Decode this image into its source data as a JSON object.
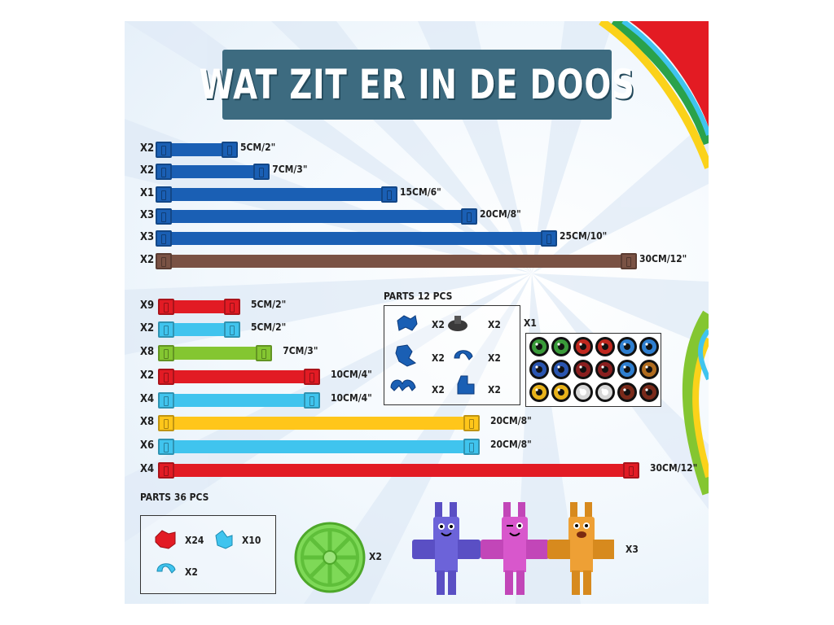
{
  "title": "WAT ZIT ER IN DE DOOS",
  "colors": {
    "dark_blue": "#1a5fb4",
    "brown": "#7a5244",
    "red": "#e21b24",
    "light_blue": "#40c4ee",
    "green": "#84c631",
    "yellow": "#ffc61a",
    "title_bg": "#3d6b80"
  },
  "rods_top": [
    {
      "qty": "X2",
      "length": "5CM/2\"",
      "color": "dark_blue"
    },
    {
      "qty": "X2",
      "length": "7CM/3\"",
      "color": "dark_blue"
    },
    {
      "qty": "X1",
      "length": "15CM/6\"",
      "color": "dark_blue"
    },
    {
      "qty": "X3",
      "length": "20CM/8\"",
      "color": "dark_blue"
    },
    {
      "qty": "X3",
      "length": "25CM/10\"",
      "color": "dark_blue"
    },
    {
      "qty": "X2",
      "length": "30CM/12\"",
      "color": "brown"
    }
  ],
  "rods_bottom": [
    {
      "qty": "X9",
      "length": "5CM/2\"",
      "color": "red"
    },
    {
      "qty": "X2",
      "length": "5CM/2\"",
      "color": "light_blue"
    },
    {
      "qty": "X8",
      "length": "7CM/3\"",
      "color": "green"
    },
    {
      "qty": "X2",
      "length": "10CM/4\"",
      "color": "red"
    },
    {
      "qty": "X4",
      "length": "10CM/4\"",
      "color": "light_blue"
    },
    {
      "qty": "X8",
      "length": "20CM/8\"",
      "color": "yellow"
    },
    {
      "qty": "X6",
      "length": "20CM/8\"",
      "color": "light_blue"
    },
    {
      "qty": "X4",
      "length": "30CM/12\"",
      "color": "red"
    }
  ],
  "parts12": {
    "label": "PARTS  12 PCS",
    "items": [
      "X2",
      "X2",
      "X2",
      "X2",
      "X2",
      "X2"
    ]
  },
  "eyes": {
    "qty": "X1"
  },
  "parts36": {
    "label": "PARTS  36 PCS",
    "items": [
      "X24",
      "X10",
      "X2"
    ]
  },
  "wheel": {
    "qty": "X2"
  },
  "figures": {
    "qty": "X3"
  }
}
